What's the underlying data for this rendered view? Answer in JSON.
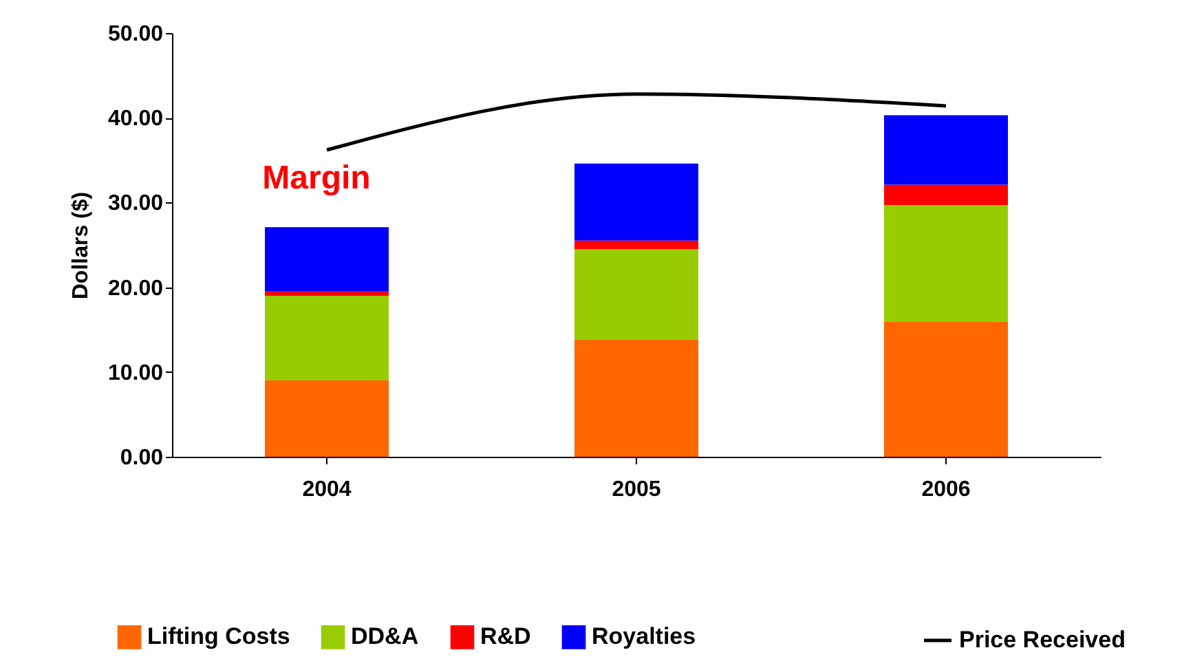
{
  "chart_data": {
    "type": "bar",
    "stacked": true,
    "categories": [
      "2004",
      "2005",
      "2006"
    ],
    "series": [
      {
        "name": "Lifting Costs",
        "color": "#ff6600",
        "values": [
          9.0,
          13.8,
          15.9
        ]
      },
      {
        "name": "DD&A",
        "color": "#99cc00",
        "values": [
          10.0,
          10.7,
          13.8
        ]
      },
      {
        "name": "R&D",
        "color": "#ff0000",
        "values": [
          0.5,
          1.0,
          2.4
        ]
      },
      {
        "name": "Royalties",
        "color": "#0000ff",
        "values": [
          7.6,
          9.1,
          8.2
        ]
      },
      {
        "name": "Price Received",
        "type": "line",
        "color": "#000000",
        "values": [
          36.2,
          42.8,
          41.4
        ]
      }
    ],
    "ylabel": "Dollars ($)",
    "ylim": [
      0,
      50
    ],
    "yticks": [
      {
        "value": 0,
        "label": "0.00"
      },
      {
        "value": 10,
        "label": "10.00"
      },
      {
        "value": 20,
        "label": "20.00"
      },
      {
        "value": 30,
        "label": "30.00"
      },
      {
        "value": 40,
        "label": "40.00"
      },
      {
        "value": 50,
        "label": "50.00"
      }
    ],
    "annotations": [
      "Margin"
    ],
    "legend": "bottom",
    "grid": false
  }
}
